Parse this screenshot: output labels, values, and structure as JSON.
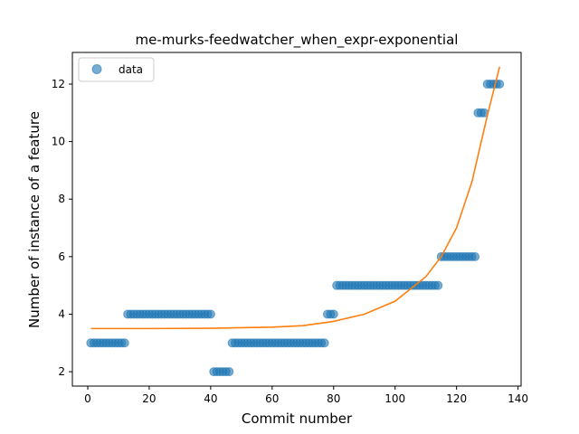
{
  "chart_data": {
    "type": "scatter",
    "title": "me-murks-feedwatcher_when_expr-exponential",
    "xlabel": "Commit number",
    "ylabel": "Number of instance of a feature",
    "xlim": [
      -5,
      141
    ],
    "ylim": [
      1.5,
      13.1
    ],
    "x_ticks": [
      0,
      20,
      40,
      60,
      80,
      100,
      120,
      140
    ],
    "y_ticks": [
      2,
      4,
      6,
      8,
      10,
      12
    ],
    "grid": false,
    "legend": {
      "location": "upper left",
      "entries": [
        "data"
      ]
    },
    "colors": {
      "scatter": "#1f77b4",
      "fit": "#ff7f0e"
    },
    "series": [
      {
        "name": "data",
        "kind": "scatter",
        "segments": [
          {
            "x_start": 1,
            "x_end": 12,
            "y": 3
          },
          {
            "x_start": 13,
            "x_end": 40,
            "y": 4
          },
          {
            "x_start": 41,
            "x_end": 46,
            "y": 2
          },
          {
            "x_start": 47,
            "x_end": 77,
            "y": 3
          },
          {
            "x_start": 78,
            "x_end": 80,
            "y": 4
          },
          {
            "x_start": 81,
            "x_end": 114,
            "y": 5
          },
          {
            "x_start": 115,
            "x_end": 126,
            "y": 6
          },
          {
            "x_start": 127,
            "x_end": 129,
            "y": 11
          },
          {
            "x_start": 130,
            "x_end": 134,
            "y": 12
          }
        ]
      },
      {
        "kind": "line",
        "model": "exponential",
        "x_range": [
          1,
          134
        ],
        "points": [
          [
            1,
            3.5
          ],
          [
            20,
            3.5
          ],
          [
            40,
            3.51
          ],
          [
            60,
            3.55
          ],
          [
            70,
            3.6
          ],
          [
            80,
            3.75
          ],
          [
            90,
            4.0
          ],
          [
            100,
            4.45
          ],
          [
            110,
            5.3
          ],
          [
            115,
            6.0
          ],
          [
            120,
            7.0
          ],
          [
            125,
            8.6
          ],
          [
            130,
            10.9
          ],
          [
            134,
            12.6
          ]
        ]
      }
    ]
  }
}
